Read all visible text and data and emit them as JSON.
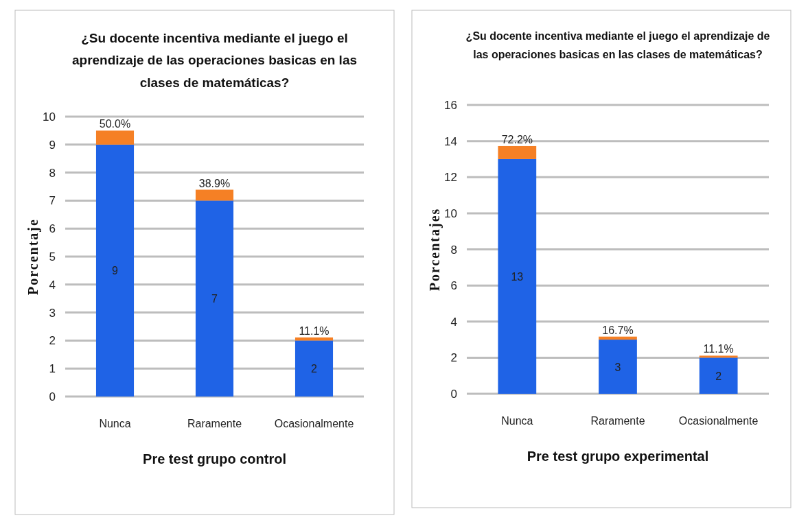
{
  "chart_data": [
    {
      "type": "bar",
      "title": "¿Su docente  incentiva mediante el juego el aprendizaje de las operaciones basicas en las clases de matemáticas?",
      "xlabel": "Pre test grupo control",
      "ylabel": "Porcentaje",
      "categories": [
        "Nunca",
        "Raramente",
        "Ocasionalmente"
      ],
      "stacked": true,
      "series": [
        {
          "color": "#1f63e6",
          "values": [
            9,
            7,
            2
          ],
          "value_labels": [
            "9",
            "7",
            "2"
          ]
        },
        {
          "color": "#f58025",
          "values": [
            0.5,
            0.389,
            0.111
          ],
          "value_labels": [
            "50.0%",
            "38.9%",
            "11.1%"
          ]
        }
      ],
      "ylim": [
        0,
        10
      ],
      "yticks": [
        0,
        1,
        2,
        3,
        4,
        5,
        6,
        7,
        8,
        9,
        10
      ],
      "grid": "y"
    },
    {
      "type": "bar",
      "title": "¿Su docente  incentiva mediante el juego el aprendizaje de las operaciones basicas en las clases de matemáticas?",
      "xlabel": "Pre test grupo experimental",
      "ylabel": "Porcentajes",
      "categories": [
        "Nunca",
        "Raramente",
        "Ocasionalmente"
      ],
      "stacked": true,
      "series": [
        {
          "color": "#1f63e6",
          "values": [
            13,
            3,
            2
          ],
          "value_labels": [
            "13",
            "3",
            "2"
          ]
        },
        {
          "color": "#f58025",
          "values": [
            0.722,
            0.167,
            0.111
          ],
          "value_labels": [
            "72.2%",
            "16.7%",
            "11.1%"
          ]
        }
      ],
      "ylim": [
        0,
        16
      ],
      "yticks": [
        0,
        2,
        4,
        6,
        8,
        10,
        12,
        14,
        16
      ],
      "grid": "y"
    }
  ]
}
